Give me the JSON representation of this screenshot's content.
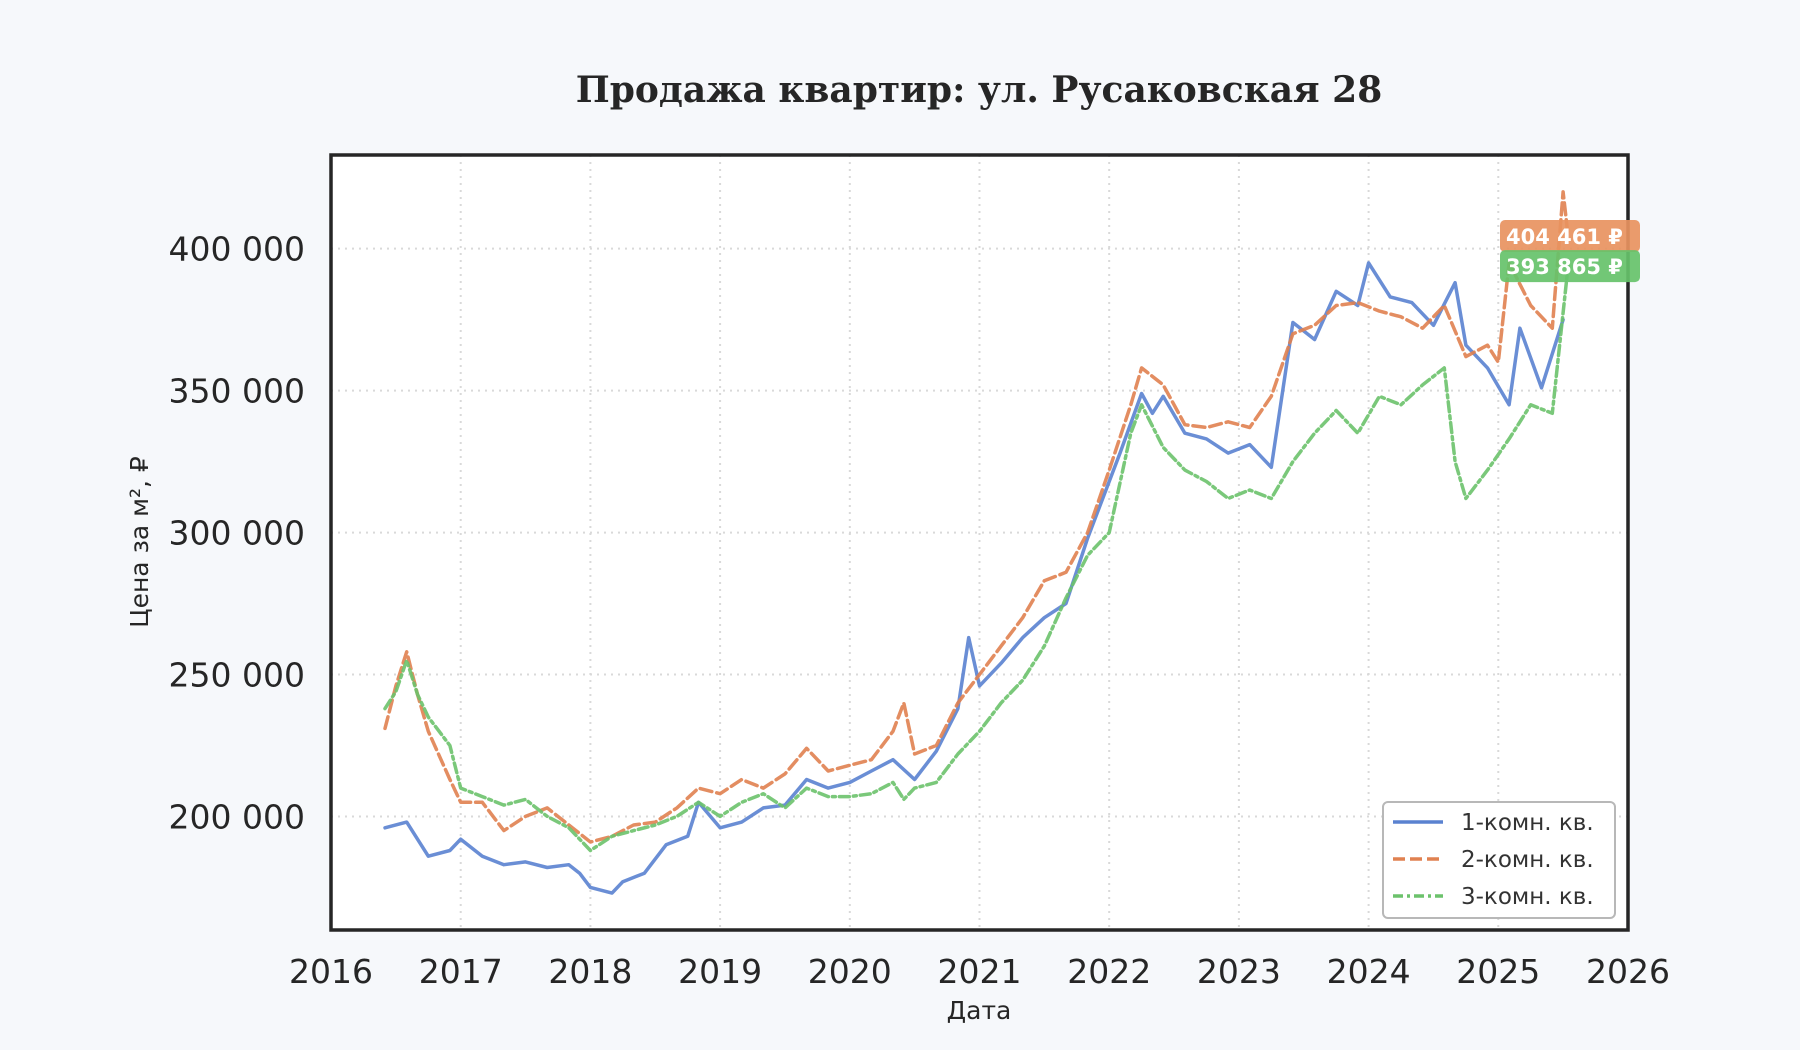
{
  "chart_data": {
    "type": "line",
    "title": "Продажа квартир: ул. Русаковская 28",
    "xlabel": "Дата",
    "ylabel": "Цена за м², ₽",
    "xlim": [
      "2016-01-01",
      "2026-01-01"
    ],
    "ylim": [
      160000,
      433000
    ],
    "x_ticks": [
      "2016",
      "2017",
      "2018",
      "2019",
      "2020",
      "2021",
      "2022",
      "2023",
      "2024",
      "2025",
      "2026"
    ],
    "y_ticks": [
      {
        "value": 200000,
        "label": "200 000"
      },
      {
        "value": 250000,
        "label": "250 000"
      },
      {
        "value": 300000,
        "label": "300 000"
      },
      {
        "value": 350000,
        "label": "350 000"
      },
      {
        "value": 400000,
        "label": "400 000"
      }
    ],
    "grid": true,
    "legend_position": "lower-right",
    "series": [
      {
        "name": "1-комн. кв.",
        "color": "#5a82d0",
        "style": "solid",
        "points": [
          [
            "2016-06-01",
            196000
          ],
          [
            "2016-08-01",
            198000
          ],
          [
            "2016-10-01",
            186000
          ],
          [
            "2016-12-01",
            188000
          ],
          [
            "2017-01-01",
            192000
          ],
          [
            "2017-03-01",
            186000
          ],
          [
            "2017-05-01",
            183000
          ],
          [
            "2017-07-01",
            184000
          ],
          [
            "2017-09-01",
            182000
          ],
          [
            "2017-11-01",
            183000
          ],
          [
            "2017-12-01",
            180000
          ],
          [
            "2018-01-01",
            175000
          ],
          [
            "2018-03-01",
            173000
          ],
          [
            "2018-04-01",
            177000
          ],
          [
            "2018-06-01",
            180000
          ],
          [
            "2018-08-01",
            190000
          ],
          [
            "2018-10-01",
            193000
          ],
          [
            "2018-11-01",
            205000
          ],
          [
            "2019-01-01",
            196000
          ],
          [
            "2019-03-01",
            198000
          ],
          [
            "2019-05-01",
            203000
          ],
          [
            "2019-07-01",
            204000
          ],
          [
            "2019-09-01",
            213000
          ],
          [
            "2019-11-01",
            210000
          ],
          [
            "2020-01-01",
            212000
          ],
          [
            "2020-03-01",
            216000
          ],
          [
            "2020-05-01",
            220000
          ],
          [
            "2020-07-01",
            213000
          ],
          [
            "2020-09-01",
            223000
          ],
          [
            "2020-11-01",
            238000
          ],
          [
            "2020-12-01",
            263000
          ],
          [
            "2021-01-01",
            246000
          ],
          [
            "2021-03-01",
            254000
          ],
          [
            "2021-05-01",
            263000
          ],
          [
            "2021-07-01",
            270000
          ],
          [
            "2021-09-01",
            275000
          ],
          [
            "2021-11-01",
            298000
          ],
          [
            "2022-01-01",
            318000
          ],
          [
            "2022-02-01",
            328000
          ],
          [
            "2022-04-01",
            349000
          ],
          [
            "2022-05-01",
            342000
          ],
          [
            "2022-06-01",
            348000
          ],
          [
            "2022-08-01",
            335000
          ],
          [
            "2022-10-01",
            333000
          ],
          [
            "2022-12-01",
            328000
          ],
          [
            "2023-02-01",
            331000
          ],
          [
            "2023-04-01",
            323000
          ],
          [
            "2023-06-01",
            374000
          ],
          [
            "2023-08-01",
            368000
          ],
          [
            "2023-10-01",
            385000
          ],
          [
            "2023-12-01",
            380000
          ],
          [
            "2024-01-01",
            395000
          ],
          [
            "2024-03-01",
            383000
          ],
          [
            "2024-05-01",
            381000
          ],
          [
            "2024-07-01",
            373000
          ],
          [
            "2024-09-01",
            388000
          ],
          [
            "2024-10-01",
            366000
          ],
          [
            "2024-12-01",
            358000
          ],
          [
            "2025-02-01",
            345000
          ],
          [
            "2025-03-01",
            372000
          ],
          [
            "2025-05-01",
            351000
          ],
          [
            "2025-07-01",
            375000
          ]
        ]
      },
      {
        "name": "2-комн. кв.",
        "color": "#e08150",
        "style": "dashed",
        "points": [
          [
            "2016-06-01",
            231000
          ],
          [
            "2016-07-01",
            246000
          ],
          [
            "2016-08-01",
            258000
          ],
          [
            "2016-09-01",
            243000
          ],
          [
            "2016-10-01",
            230000
          ],
          [
            "2016-12-01",
            213000
          ],
          [
            "2017-01-01",
            205000
          ],
          [
            "2017-03-01",
            205000
          ],
          [
            "2017-05-01",
            195000
          ],
          [
            "2017-07-01",
            200000
          ],
          [
            "2017-09-01",
            203000
          ],
          [
            "2017-11-01",
            197000
          ],
          [
            "2018-01-01",
            191000
          ],
          [
            "2018-03-01",
            193000
          ],
          [
            "2018-05-01",
            197000
          ],
          [
            "2018-07-01",
            198000
          ],
          [
            "2018-09-01",
            203000
          ],
          [
            "2018-11-01",
            210000
          ],
          [
            "2019-01-01",
            208000
          ],
          [
            "2019-03-01",
            213000
          ],
          [
            "2019-05-01",
            210000
          ],
          [
            "2019-07-01",
            215000
          ],
          [
            "2019-09-01",
            224000
          ],
          [
            "2019-11-01",
            216000
          ],
          [
            "2020-01-01",
            218000
          ],
          [
            "2020-03-01",
            220000
          ],
          [
            "2020-05-01",
            230000
          ],
          [
            "2020-06-01",
            240000
          ],
          [
            "2020-07-01",
            222000
          ],
          [
            "2020-09-01",
            225000
          ],
          [
            "2020-11-01",
            240000
          ],
          [
            "2021-01-01",
            250000
          ],
          [
            "2021-03-01",
            260000
          ],
          [
            "2021-05-01",
            270000
          ],
          [
            "2021-07-01",
            283000
          ],
          [
            "2021-09-01",
            286000
          ],
          [
            "2021-11-01",
            300000
          ],
          [
            "2022-01-01",
            322000
          ],
          [
            "2022-03-01",
            345000
          ],
          [
            "2022-04-01",
            358000
          ],
          [
            "2022-06-01",
            352000
          ],
          [
            "2022-08-01",
            338000
          ],
          [
            "2022-10-01",
            337000
          ],
          [
            "2022-12-01",
            339000
          ],
          [
            "2023-02-01",
            337000
          ],
          [
            "2023-04-01",
            348000
          ],
          [
            "2023-06-01",
            370000
          ],
          [
            "2023-08-01",
            373000
          ],
          [
            "2023-10-01",
            380000
          ],
          [
            "2023-12-01",
            381000
          ],
          [
            "2024-02-01",
            378000
          ],
          [
            "2024-04-01",
            376000
          ],
          [
            "2024-06-01",
            372000
          ],
          [
            "2024-08-01",
            380000
          ],
          [
            "2024-10-01",
            362000
          ],
          [
            "2024-12-01",
            366000
          ],
          [
            "2025-01-01",
            360000
          ],
          [
            "2025-02-01",
            395000
          ],
          [
            "2025-04-01",
            380000
          ],
          [
            "2025-06-01",
            372000
          ],
          [
            "2025-07-01",
            420000
          ],
          [
            "2025-07-15",
            404461
          ]
        ]
      },
      {
        "name": "3-комн. кв.",
        "color": "#6cc26c",
        "style": "dashdot",
        "points": [
          [
            "2016-06-01",
            238000
          ],
          [
            "2016-07-01",
            244000
          ],
          [
            "2016-08-01",
            255000
          ],
          [
            "2016-09-01",
            243000
          ],
          [
            "2016-10-01",
            235000
          ],
          [
            "2016-12-01",
            225000
          ],
          [
            "2017-01-01",
            210000
          ],
          [
            "2017-03-01",
            207000
          ],
          [
            "2017-05-01",
            204000
          ],
          [
            "2017-07-01",
            206000
          ],
          [
            "2017-09-01",
            200000
          ],
          [
            "2017-11-01",
            196000
          ],
          [
            "2018-01-01",
            188000
          ],
          [
            "2018-03-01",
            193000
          ],
          [
            "2018-05-01",
            195000
          ],
          [
            "2018-07-01",
            197000
          ],
          [
            "2018-09-01",
            200000
          ],
          [
            "2018-11-01",
            205000
          ],
          [
            "2019-01-01",
            200000
          ],
          [
            "2019-03-01",
            205000
          ],
          [
            "2019-05-01",
            208000
          ],
          [
            "2019-07-01",
            203000
          ],
          [
            "2019-09-01",
            210000
          ],
          [
            "2019-11-01",
            207000
          ],
          [
            "2020-01-01",
            207000
          ],
          [
            "2020-03-01",
            208000
          ],
          [
            "2020-05-01",
            212000
          ],
          [
            "2020-06-01",
            206000
          ],
          [
            "2020-07-01",
            210000
          ],
          [
            "2020-09-01",
            212000
          ],
          [
            "2020-11-01",
            222000
          ],
          [
            "2021-01-01",
            230000
          ],
          [
            "2021-03-01",
            240000
          ],
          [
            "2021-05-01",
            248000
          ],
          [
            "2021-07-01",
            260000
          ],
          [
            "2021-09-01",
            277000
          ],
          [
            "2021-11-01",
            292000
          ],
          [
            "2022-01-01",
            300000
          ],
          [
            "2022-03-01",
            335000
          ],
          [
            "2022-04-01",
            345000
          ],
          [
            "2022-06-01",
            330000
          ],
          [
            "2022-08-01",
            322000
          ],
          [
            "2022-10-01",
            318000
          ],
          [
            "2022-12-01",
            312000
          ],
          [
            "2023-02-01",
            315000
          ],
          [
            "2023-04-01",
            312000
          ],
          [
            "2023-06-01",
            325000
          ],
          [
            "2023-08-01",
            335000
          ],
          [
            "2023-10-01",
            343000
          ],
          [
            "2023-12-01",
            335000
          ],
          [
            "2024-02-01",
            348000
          ],
          [
            "2024-04-01",
            345000
          ],
          [
            "2024-06-01",
            352000
          ],
          [
            "2024-08-01",
            358000
          ],
          [
            "2024-09-01",
            325000
          ],
          [
            "2024-10-01",
            312000
          ],
          [
            "2024-12-01",
            322000
          ],
          [
            "2025-02-01",
            333000
          ],
          [
            "2025-04-01",
            345000
          ],
          [
            "2025-06-01",
            342000
          ],
          [
            "2025-07-15",
            393865
          ]
        ]
      }
    ],
    "annotations": [
      {
        "text": "404 461 ₽",
        "series": "2-комн. кв.",
        "value": 404461,
        "color": "#e8935f"
      },
      {
        "text": "393 865 ₽",
        "series": "3-комн. кв.",
        "value": 393865,
        "color": "#66c26a"
      }
    ]
  }
}
